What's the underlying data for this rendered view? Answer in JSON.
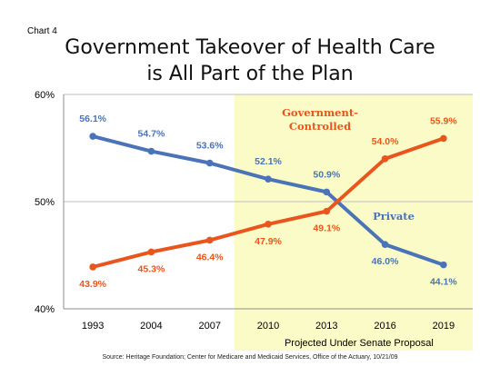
{
  "header": {
    "chart_label": "Chart 4",
    "title_line1": "Government Takeover of Health Care",
    "title_line2": "is All Part of the Plan"
  },
  "footer": {
    "source": "Source:  Heritage Foundation; Center for Medicare and Medicaid Services, Office of the Actuary, 10/21/09"
  },
  "colors": {
    "private": "#4a73b8",
    "government": "#e8561e",
    "shade": "#fbfbc8",
    "grid": "#bfbfbf"
  },
  "chart_data": {
    "type": "line",
    "title": "Government Takeover of Health Care is All Part of the Plan",
    "categories": [
      "1993",
      "2004",
      "2007",
      "2010",
      "2013",
      "2016",
      "2019"
    ],
    "y_ticks": [
      "40%",
      "50%",
      "60%"
    ],
    "ylim": [
      40,
      60
    ],
    "grid": true,
    "series": [
      {
        "name": "Private",
        "values": [
          56.1,
          54.7,
          53.6,
          52.1,
          50.9,
          46.0,
          44.1
        ],
        "labels": [
          "56.1%",
          "54.7%",
          "53.6%",
          "52.1%",
          "50.9%",
          "46.0%",
          "44.1%"
        ]
      },
      {
        "name": "Government-Controlled",
        "name_lines": [
          "Government-",
          "Controlled"
        ],
        "values": [
          43.9,
          45.3,
          46.4,
          47.9,
          49.1,
          54.0,
          55.9
        ],
        "labels": [
          "43.9%",
          "45.3%",
          "46.4%",
          "47.9%",
          "49.1%",
          "54.0%",
          "55.9%"
        ]
      }
    ],
    "shaded_region": {
      "from_category": "2010",
      "label": "Projected Under Senate Proposal"
    }
  }
}
